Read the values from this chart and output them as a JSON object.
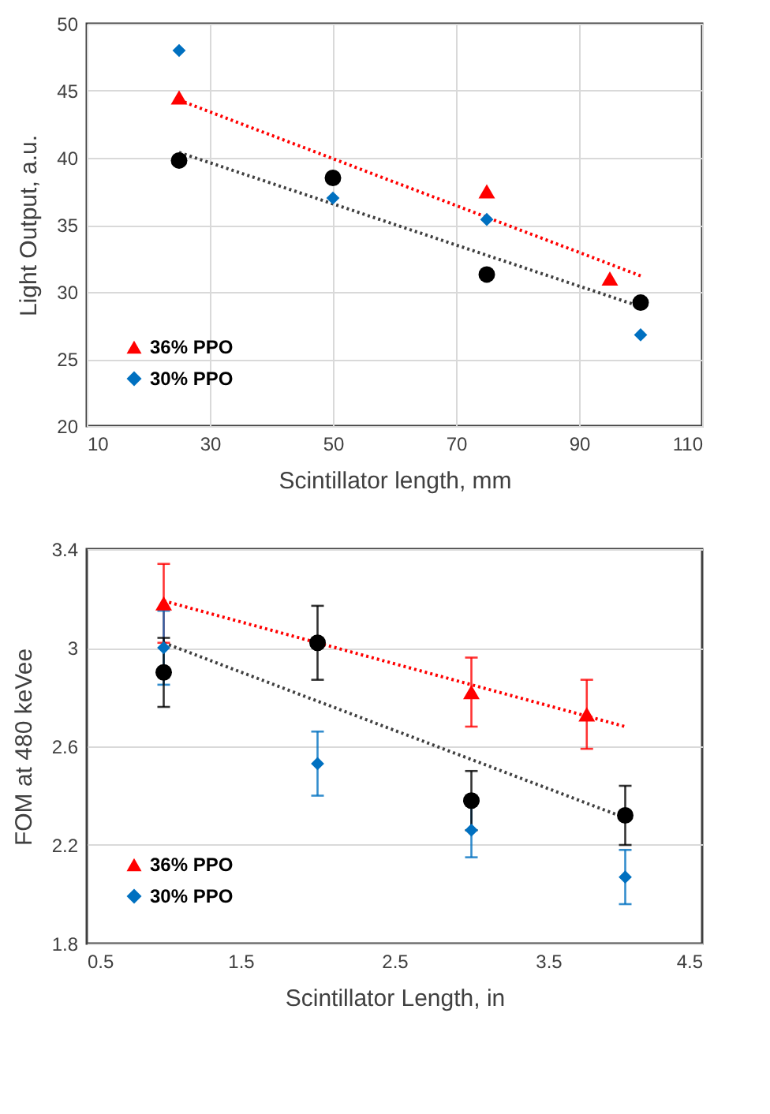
{
  "chart_data": [
    {
      "type": "scatter",
      "xlabel": "Scintillator length, mm",
      "ylabel": "Light Output, a.u.",
      "xlim": [
        10,
        110
      ],
      "xticks": [
        10,
        30,
        50,
        70,
        90,
        110
      ],
      "ylim": [
        20,
        50
      ],
      "yticks": [
        20,
        25,
        30,
        35,
        40,
        45,
        50
      ],
      "grid": true,
      "legend": "bottom left",
      "series": [
        {
          "type": "line",
          "color": "#ff0000",
          "line_style": "dotted",
          "x": [
            25,
            100
          ],
          "values": [
            44.3,
            31.2
          ]
        },
        {
          "type": "line",
          "color": "#404040",
          "line_style": "dotted",
          "x": [
            25,
            100
          ],
          "values": [
            40.4,
            28.9
          ]
        },
        {
          "name": "36% PPO",
          "color": "#ff0000",
          "marker": "triangle",
          "x": [
            25,
            50,
            75,
            95
          ],
          "values": [
            44.5,
            null,
            37.5,
            31
          ]
        },
        {
          "name": "30% PPO",
          "color": "#0070c0",
          "marker": "diamond",
          "x": [
            25,
            50,
            75,
            100
          ],
          "values": [
            48,
            37,
            35.4,
            26.8
          ]
        },
        {
          "color": "#000000",
          "marker": "circle",
          "x": [
            25,
            50,
            75,
            100
          ],
          "values": [
            39.8,
            38.5,
            31.3,
            29.2
          ]
        }
      ]
    },
    {
      "type": "scatter",
      "xlabel": "Scintillator Length, in",
      "ylabel": "FOM at 480 keVee",
      "xlim": [
        0.5,
        4.5
      ],
      "xticks": [
        0.5,
        1.5,
        2.5,
        3.5,
        4.5
      ],
      "ylim": [
        1.8,
        3.4
      ],
      "yticks": [
        1.8,
        2.2,
        2.6,
        3,
        3.4
      ],
      "grid": "y",
      "legend": "bottom left",
      "series": [
        {
          "type": "line",
          "color": "#ff0000",
          "line_style": "dotted",
          "x": [
            1,
            4
          ],
          "values": [
            3.19,
            2.68
          ]
        },
        {
          "type": "line",
          "color": "#404040",
          "line_style": "dotted",
          "x": [
            1,
            4
          ],
          "values": [
            3.02,
            2.31
          ]
        },
        {
          "name": "36% PPO",
          "color": "#ff0000",
          "marker": "triangle",
          "x": [
            1,
            2,
            3,
            3.75
          ],
          "values": [
            3.18,
            null,
            2.82,
            2.73
          ],
          "errors": [
            0.16,
            null,
            0.14,
            0.14
          ]
        },
        {
          "name": "30% PPO",
          "color": "#0070c0",
          "marker": "diamond",
          "x": [
            1,
            2,
            3,
            4
          ],
          "values": [
            3.0,
            2.53,
            2.26,
            2.07
          ],
          "errors": [
            0.15,
            0.13,
            0.11,
            0.11
          ]
        },
        {
          "color": "#000000",
          "marker": "circle",
          "x": [
            1,
            2,
            3,
            4
          ],
          "values": [
            2.9,
            3.02,
            2.38,
            2.32
          ],
          "errors": [
            0.14,
            0.15,
            0.12,
            0.12
          ]
        }
      ]
    }
  ]
}
